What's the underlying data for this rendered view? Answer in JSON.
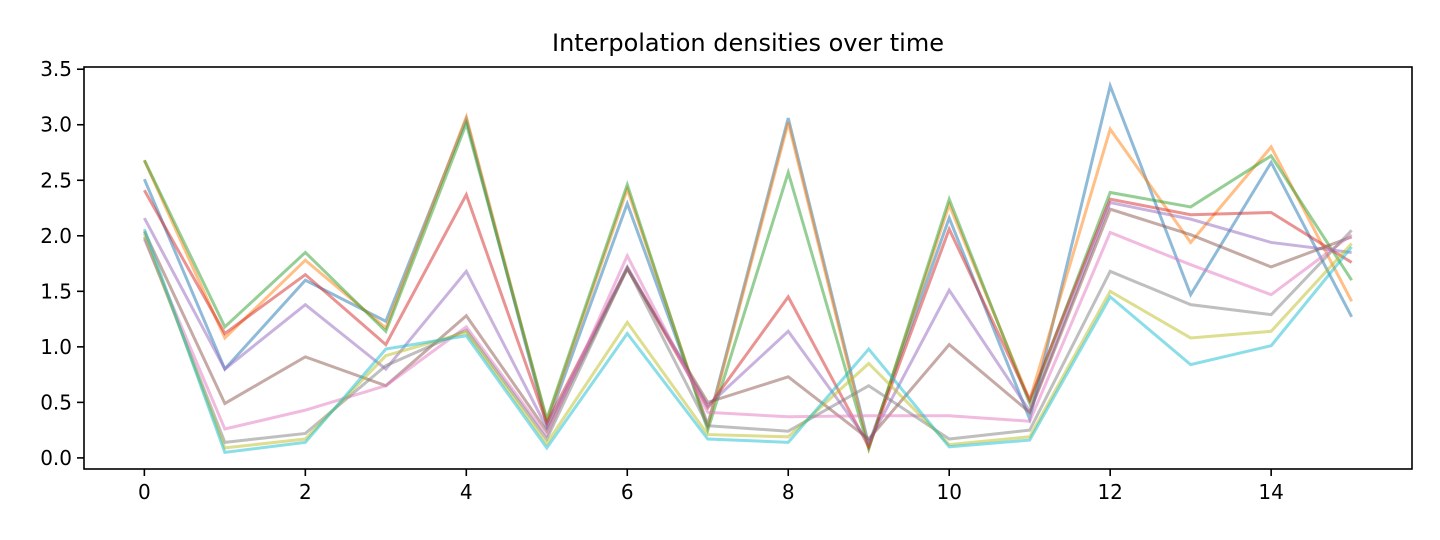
{
  "chart_data": {
    "type": "line",
    "title": "Interpolation densities over time",
    "xlabel": "",
    "ylabel": "",
    "xlim": [
      -0.75,
      15.75
    ],
    "ylim": [
      -0.1,
      3.52
    ],
    "xticks": [
      0,
      2,
      4,
      6,
      8,
      10,
      12,
      14
    ],
    "yticks": [
      0.0,
      0.5,
      1.0,
      1.5,
      2.0,
      2.5,
      3.0,
      3.5
    ],
    "ytick_labels": [
      "0.0",
      "0.5",
      "1.0",
      "1.5",
      "2.0",
      "2.5",
      "3.0",
      "3.5"
    ],
    "grid": false,
    "legend": "none",
    "x": [
      0,
      1,
      2,
      3,
      4,
      5,
      6,
      7,
      8,
      9,
      10,
      11,
      12,
      13,
      14,
      15
    ],
    "series": [
      {
        "color": "#1f77b4",
        "values": [
          2.51,
          0.8,
          1.6,
          1.23,
          3.05,
          0.3,
          2.29,
          0.3,
          3.06,
          0.12,
          2.16,
          0.35,
          3.35,
          1.47,
          2.66,
          1.27
        ]
      },
      {
        "color": "#ff7f0e",
        "values": [
          2.68,
          1.08,
          1.78,
          1.17,
          3.07,
          0.33,
          2.42,
          0.28,
          3.02,
          0.09,
          2.28,
          0.52,
          2.96,
          1.94,
          2.8,
          1.41
        ]
      },
      {
        "color": "#2ca02c",
        "values": [
          2.68,
          1.18,
          1.85,
          1.14,
          3.01,
          0.35,
          2.46,
          0.25,
          2.57,
          0.08,
          2.33,
          0.49,
          2.39,
          2.26,
          2.72,
          1.6
        ]
      },
      {
        "color": "#d62728",
        "values": [
          2.41,
          1.12,
          1.65,
          1.02,
          2.37,
          0.31,
          1.71,
          0.45,
          1.45,
          0.1,
          2.06,
          0.52,
          2.33,
          2.19,
          2.21,
          1.76
        ]
      },
      {
        "color": "#9467bd",
        "values": [
          2.16,
          0.8,
          1.38,
          0.8,
          1.68,
          0.27,
          1.72,
          0.47,
          1.14,
          0.14,
          1.51,
          0.42,
          2.3,
          2.15,
          1.94,
          1.85
        ]
      },
      {
        "color": "#8c564b",
        "values": [
          2.04,
          0.49,
          0.91,
          0.65,
          1.28,
          0.24,
          1.7,
          0.5,
          0.73,
          0.17,
          1.02,
          0.41,
          2.24,
          2.01,
          1.72,
          1.99
        ]
      },
      {
        "color": "#e377c2",
        "values": [
          1.97,
          0.26,
          0.43,
          0.65,
          1.18,
          0.2,
          1.82,
          0.41,
          0.37,
          0.38,
          0.38,
          0.33,
          2.03,
          1.74,
          1.47,
          2.01
        ]
      },
      {
        "color": "#7f7f7f",
        "values": [
          1.99,
          0.14,
          0.22,
          0.83,
          1.15,
          0.17,
          1.71,
          0.29,
          0.24,
          0.65,
          0.17,
          0.25,
          1.68,
          1.38,
          1.29,
          2.05
        ]
      },
      {
        "color": "#bcbd22",
        "values": [
          2.02,
          0.09,
          0.17,
          0.92,
          1.13,
          0.13,
          1.22,
          0.21,
          0.19,
          0.85,
          0.12,
          0.19,
          1.5,
          1.08,
          1.14,
          1.93
        ]
      },
      {
        "color": "#17becf",
        "values": [
          2.06,
          0.05,
          0.14,
          0.98,
          1.1,
          0.09,
          1.12,
          0.17,
          0.14,
          0.98,
          0.1,
          0.16,
          1.45,
          0.84,
          1.01,
          1.9
        ]
      }
    ]
  }
}
